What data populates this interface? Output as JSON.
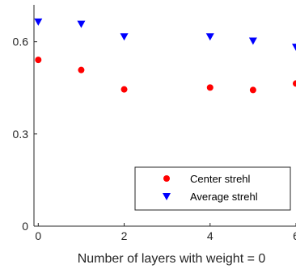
{
  "chart_data": {
    "type": "scatter",
    "title": "",
    "xlabel": "Number of layers with weight = 0",
    "ylabel": "",
    "xlim": [
      -0.1,
      6.0
    ],
    "ylim": [
      0,
      0.72
    ],
    "xticks": [
      0,
      2,
      4,
      6
    ],
    "xtick_labels": [
      "0",
      "2",
      "4",
      "6"
    ],
    "yticks": [
      0,
      0.3,
      0.6
    ],
    "ytick_labels": [
      "0",
      "0.3",
      "0.6"
    ],
    "grid": false,
    "legend_position": "bottom-right",
    "series": [
      {
        "name": "Center strehl",
        "marker": "circle",
        "color": "#ff0000",
        "x": [
          0,
          1,
          2,
          4,
          5,
          6
        ],
        "y": [
          0.541,
          0.508,
          0.445,
          0.451,
          0.443,
          0.464
        ]
      },
      {
        "name": "Average strehl",
        "marker": "triangle-down",
        "color": "#0000ff",
        "x": [
          0,
          1,
          2,
          4,
          5,
          6
        ],
        "y": [
          0.665,
          0.658,
          0.617,
          0.617,
          0.603,
          0.583
        ]
      }
    ]
  }
}
